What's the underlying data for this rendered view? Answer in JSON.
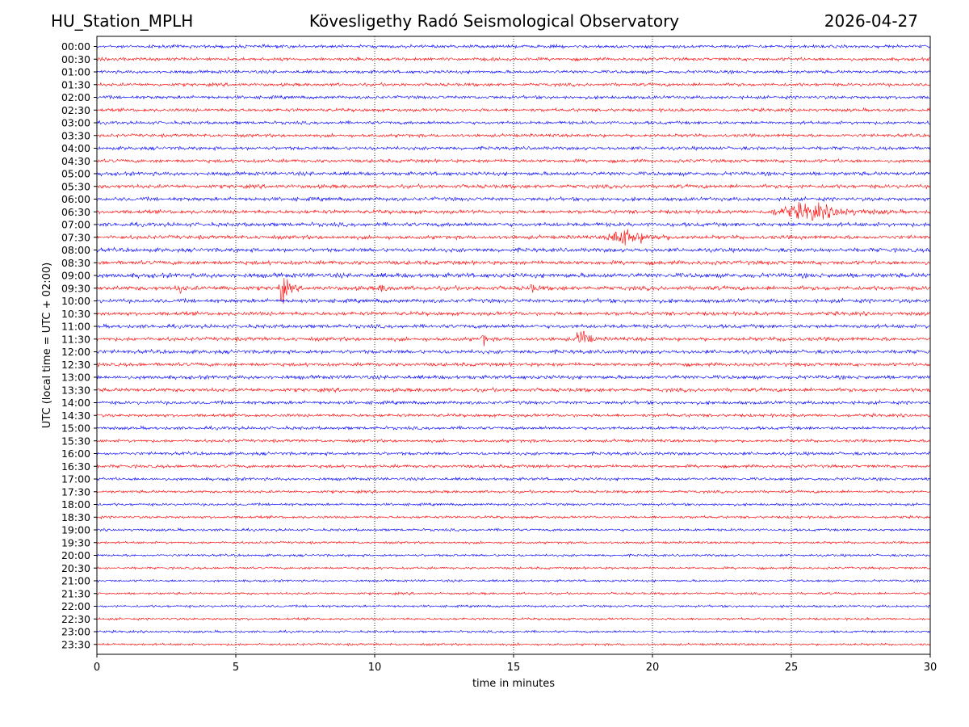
{
  "header": {
    "station": "HU_Station_MPLH",
    "observatory": "Kövesligethy Radó Seismological Observatory",
    "date": "2026-04-27"
  },
  "chart_data": {
    "type": "line",
    "title": "Kövesligethy Radó Seismological Observatory",
    "xlabel": "time in minutes",
    "ylabel": "UTC (local time = UTC + 02:00)",
    "xlim": [
      0,
      30
    ],
    "x_ticks": [
      0,
      5,
      10,
      15,
      20,
      25,
      30
    ],
    "x_tick_labels": [
      "0",
      "5",
      "10",
      "15",
      "20",
      "25",
      "30"
    ],
    "grid": "vertical-dotted",
    "colors": {
      "even": "#0000ff",
      "odd": "#ff0000"
    },
    "rows": [
      "00:00",
      "00:30",
      "01:00",
      "01:30",
      "02:00",
      "02:30",
      "03:00",
      "03:30",
      "04:00",
      "04:30",
      "05:00",
      "05:30",
      "06:00",
      "06:30",
      "07:00",
      "07:30",
      "08:00",
      "08:30",
      "09:00",
      "09:30",
      "10:00",
      "10:30",
      "11:00",
      "11:30",
      "12:00",
      "12:30",
      "13:00",
      "13:30",
      "14:00",
      "14:30",
      "15:00",
      "15:30",
      "16:00",
      "16:30",
      "17:00",
      "17:30",
      "18:00",
      "18:30",
      "19:00",
      "19:30",
      "20:00",
      "20:30",
      "21:00",
      "21:30",
      "22:00",
      "22:30",
      "23:00",
      "23:30"
    ],
    "noise": [
      1.5,
      1.5,
      1.5,
      1.5,
      1.5,
      1.5,
      1.5,
      1.5,
      1.6,
      1.6,
      1.8,
      1.8,
      1.8,
      1.8,
      1.9,
      1.8,
      1.9,
      1.9,
      2.2,
      2.0,
      1.9,
      1.8,
      1.8,
      1.8,
      1.8,
      1.7,
      1.8,
      1.8,
      1.6,
      1.5,
      1.5,
      1.4,
      1.5,
      1.5,
      1.4,
      1.3,
      1.2,
      1.2,
      1.2,
      1.1,
      1.1,
      1.1,
      1.1,
      1.1,
      1.1,
      1.1,
      1.1,
      1.1
    ],
    "events": [
      {
        "row": "06:30",
        "start": 24.0,
        "peak": 25.7,
        "end": 28.8,
        "amp": 8
      },
      {
        "row": "07:30",
        "start": 18.3,
        "peak": 18.9,
        "end": 21.0,
        "amp": 9
      },
      {
        "row": "09:30",
        "start": 2.8,
        "peak": 3.0,
        "end": 3.3,
        "amp": 4
      },
      {
        "row": "09:30",
        "start": 4.5,
        "peak": 4.6,
        "end": 4.8,
        "amp": 4
      },
      {
        "row": "09:30",
        "start": 6.5,
        "peak": 6.65,
        "end": 7.3,
        "amp": 14
      },
      {
        "row": "09:30",
        "start": 10.0,
        "peak": 10.3,
        "end": 10.8,
        "amp": 3
      },
      {
        "row": "09:30",
        "start": 15.4,
        "peak": 15.7,
        "end": 16.2,
        "amp": 3
      },
      {
        "row": "11:30",
        "start": 13.8,
        "peak": 13.9,
        "end": 14.2,
        "amp": 7
      },
      {
        "row": "11:30",
        "start": 17.2,
        "peak": 17.5,
        "end": 18.0,
        "amp": 12
      },
      {
        "row": "11:30",
        "start": 24.6,
        "peak": 24.7,
        "end": 24.9,
        "amp": 3
      },
      {
        "row": "12:30",
        "start": 20.7,
        "peak": 20.8,
        "end": 21.0,
        "amp": 3
      }
    ]
  }
}
